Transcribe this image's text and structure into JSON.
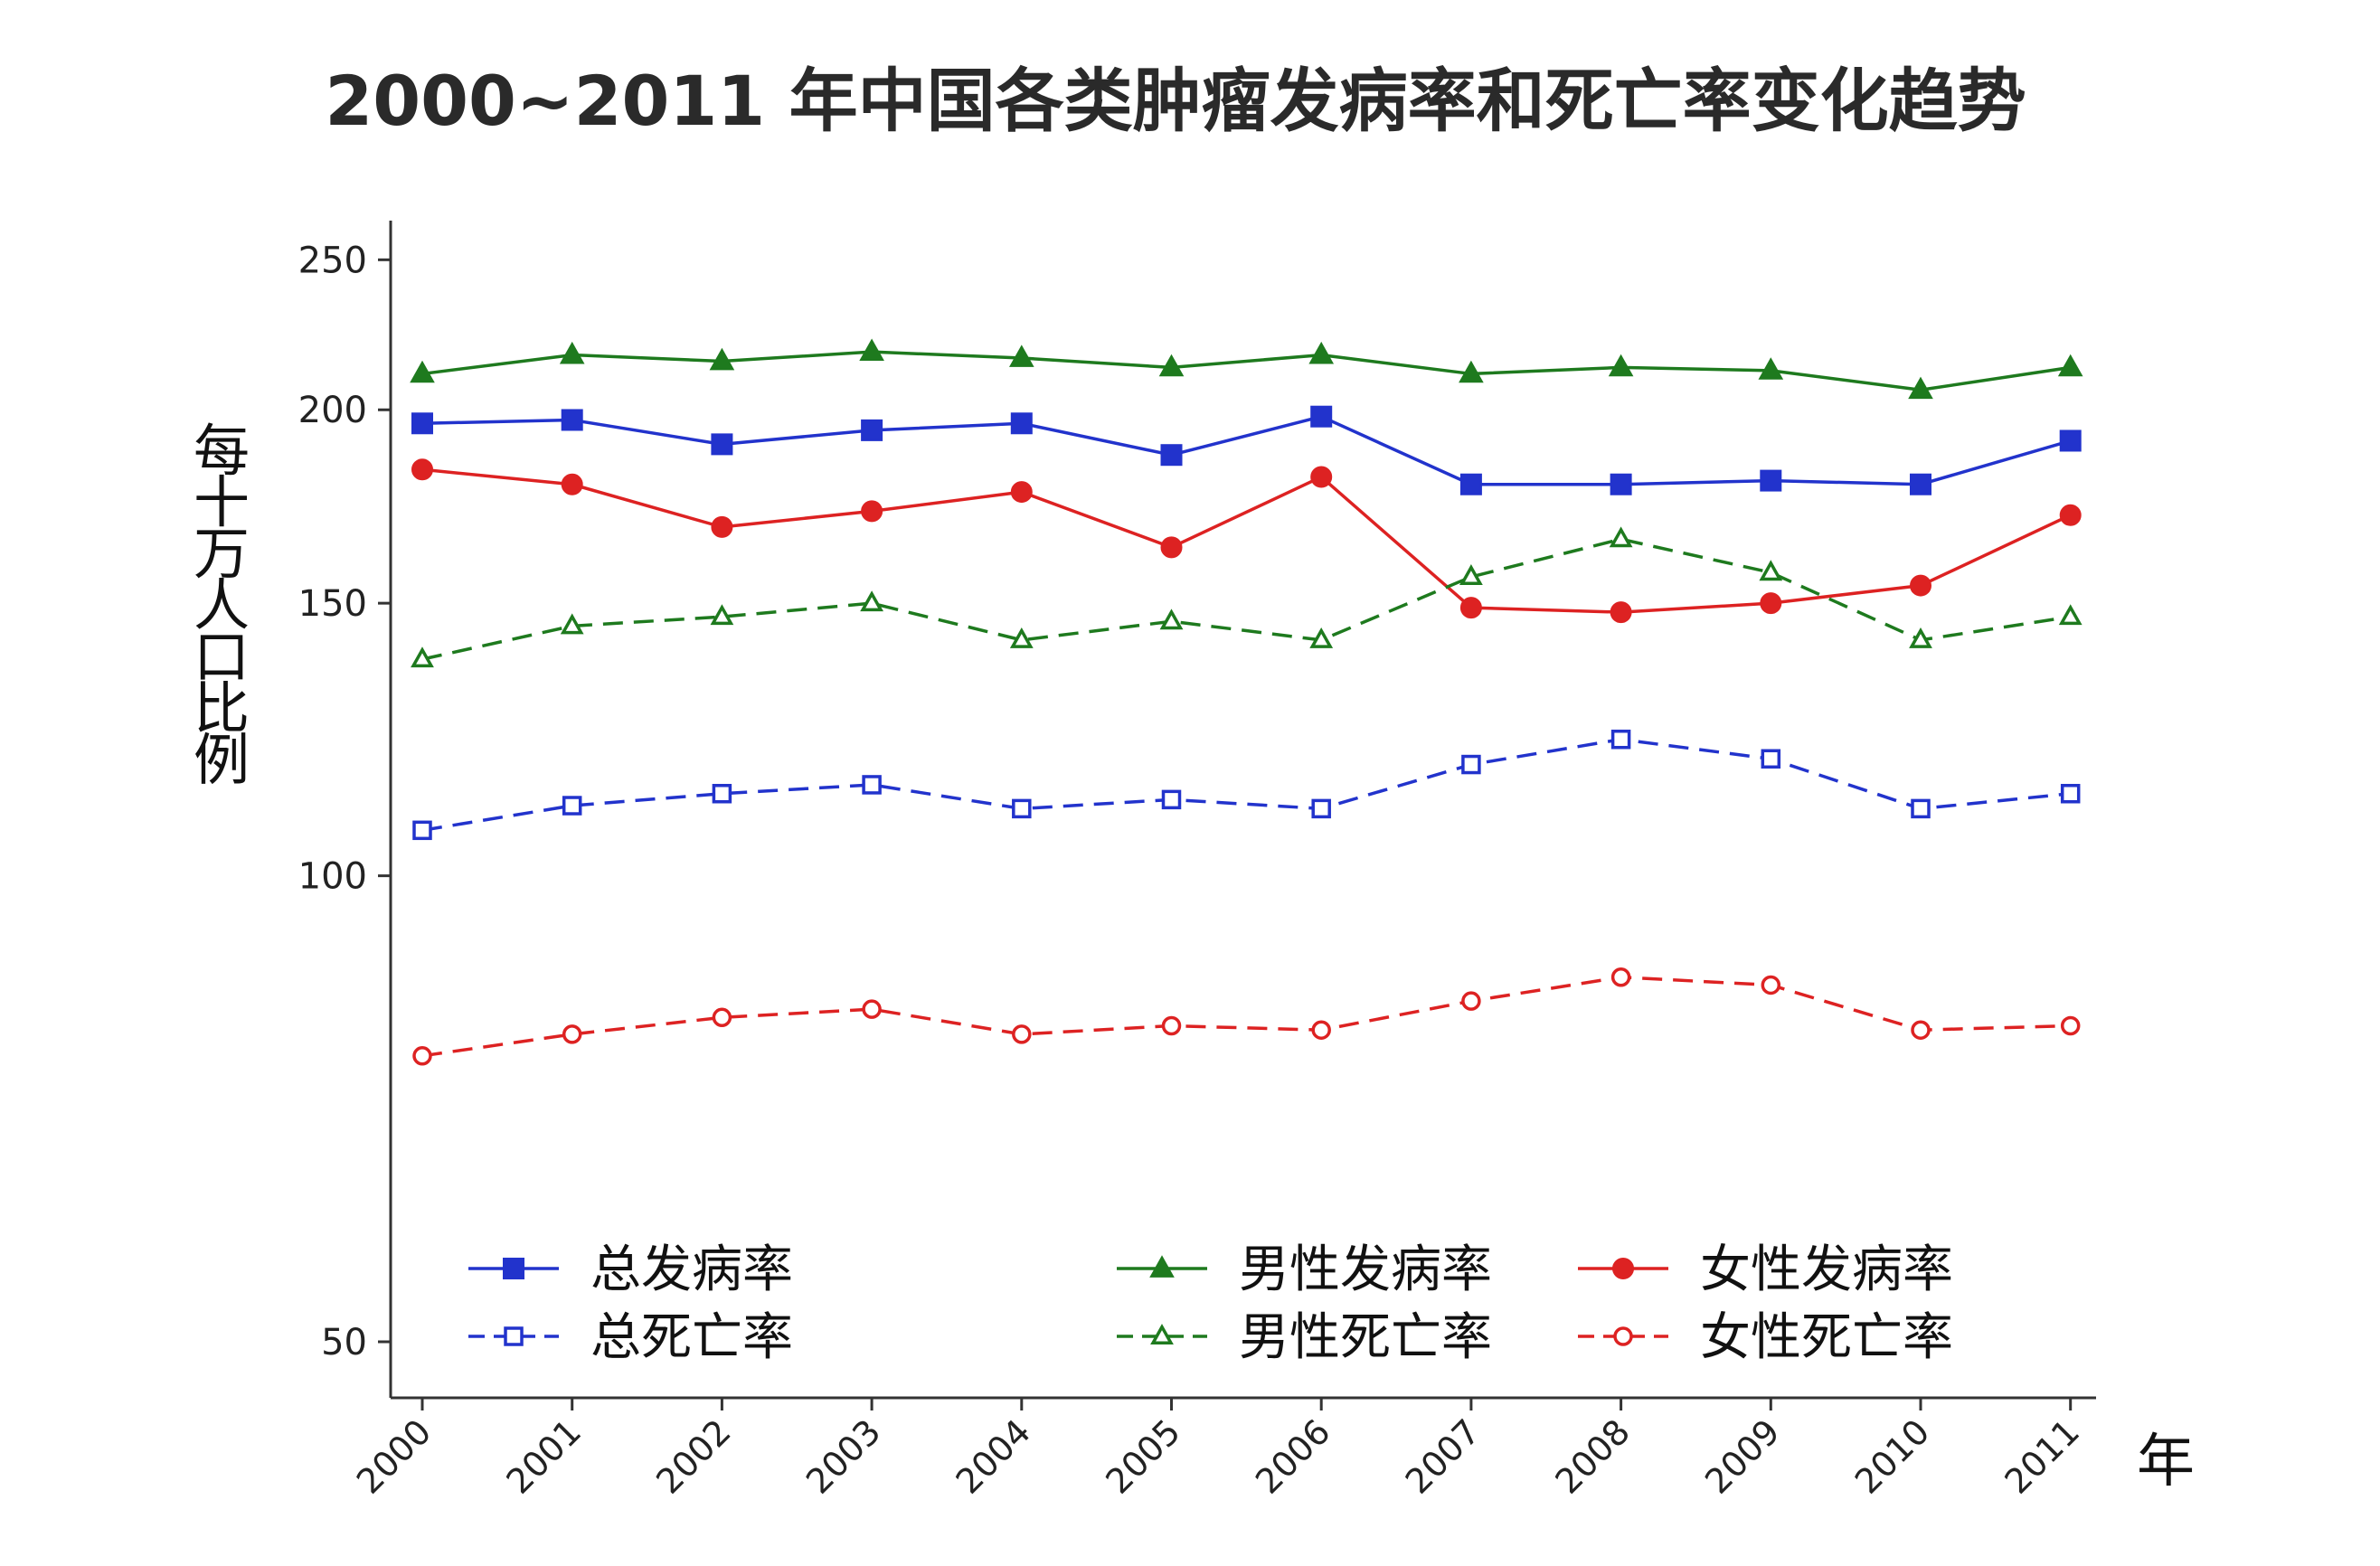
{
  "chart_data": {
    "type": "line",
    "title": "2000~2011 年中国各类肿瘤发病率和死亡率变化趋势",
    "xlabel": "年",
    "ylabel": "每十万人口比例",
    "y_scale": "log",
    "ylim": [
      46,
      265
    ],
    "yticks": [
      50,
      100,
      150,
      200,
      250
    ],
    "ytick_labels": [
      "50",
      "100",
      "150",
      "200",
      "250"
    ],
    "categories": [
      "2000",
      "2001",
      "2002",
      "2003",
      "2004",
      "2005",
      "2006",
      "2007",
      "2008",
      "2009",
      "2010",
      "2011"
    ],
    "grid": false,
    "legend_position": "bottom-inside",
    "series": [
      {
        "name": "总发病率",
        "color": "#2233cc",
        "dash": false,
        "marker": "square",
        "filled": true,
        "values": [
          196,
          197,
          190,
          194,
          196,
          187,
          198,
          179,
          179,
          180,
          179,
          191
        ]
      },
      {
        "name": "男性发病率",
        "color": "#1e7a1e",
        "dash": false,
        "marker": "triangle",
        "filled": true,
        "values": [
          211,
          217,
          215,
          218,
          216,
          213,
          217,
          211,
          213,
          212,
          206,
          213
        ]
      },
      {
        "name": "女性发病率",
        "color": "#dd2222",
        "dash": false,
        "marker": "circle",
        "filled": true,
        "values": [
          183,
          179,
          168,
          172,
          177,
          163,
          181,
          149,
          148,
          150,
          154,
          171
        ]
      },
      {
        "name": "总死亡率",
        "color": "#2233cc",
        "dash": true,
        "marker": "square",
        "filled": false,
        "values": [
          107,
          111,
          113,
          114.5,
          110.5,
          112,
          110.5,
          118,
          122.5,
          119,
          110.5,
          113
        ]
      },
      {
        "name": "男性死亡率",
        "color": "#1e7a1e",
        "dash": true,
        "marker": "triangle",
        "filled": false,
        "values": [
          138,
          145,
          147,
          150,
          142,
          146,
          142,
          156,
          165,
          157,
          142,
          147
        ]
      },
      {
        "name": "女性死亡率",
        "color": "#dd2222",
        "dash": true,
        "marker": "circle",
        "filled": false,
        "values": [
          76.5,
          79,
          81,
          82,
          79,
          80,
          79.5,
          83,
          86,
          85,
          79.5,
          80
        ]
      }
    ],
    "legend_rows": [
      [
        "总发病率",
        "男性发病率",
        "女性发病率"
      ],
      [
        "总死亡率",
        "男性死亡率",
        "女性死亡率"
      ]
    ]
  }
}
